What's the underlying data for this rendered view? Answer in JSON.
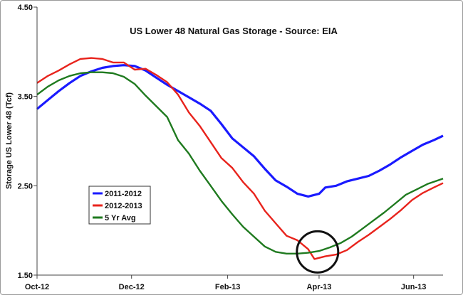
{
  "chart_data": {
    "type": "line",
    "title": "US Lower 48 Natural Gas Storage - Source: EIA",
    "xlabel": "",
    "ylabel": "Storage US Lower 48 (Tcf)",
    "xlim": [
      "2012-10-01",
      "2013-06-20"
    ],
    "ylim": [
      1.5,
      4.5
    ],
    "x_ticks": [
      {
        "label": "Oct-12",
        "x": "2012-10-01"
      },
      {
        "label": "Dec-12",
        "x": "2012-12-01"
      },
      {
        "label": "Feb-13",
        "x": "2013-02-01"
      },
      {
        "label": "Apr-13",
        "x": "2013-04-01"
      },
      {
        "label": "Jun-13",
        "x": "2013-06-01"
      }
    ],
    "y_ticks": [
      {
        "label": "1.50",
        "value": 1.5
      },
      {
        "label": "2.50",
        "value": 2.5
      },
      {
        "label": "3.50",
        "value": 3.5
      },
      {
        "label": "4.50",
        "value": 4.5
      }
    ],
    "grid": false,
    "legend": {
      "position": "left-center"
    },
    "annotation": {
      "type": "circle",
      "x": "2013-03-31",
      "y": 1.76
    },
    "colors": {
      "2011-2012": "#1a1aff",
      "2012-2013": "#e8231c",
      "5 Yr Avg": "#1f7a1f"
    },
    "series": [
      {
        "name": "2011-2012",
        "points": [
          [
            "2012-10-01",
            3.36
          ],
          [
            "2012-10-08",
            3.46
          ],
          [
            "2012-10-15",
            3.56
          ],
          [
            "2012-10-22",
            3.65
          ],
          [
            "2012-10-29",
            3.73
          ],
          [
            "2012-11-05",
            3.78
          ],
          [
            "2012-11-12",
            3.82
          ],
          [
            "2012-11-19",
            3.84
          ],
          [
            "2012-11-26",
            3.85
          ],
          [
            "2012-12-03",
            3.84
          ],
          [
            "2012-12-10",
            3.79
          ],
          [
            "2012-12-17",
            3.71
          ],
          [
            "2012-12-24",
            3.63
          ],
          [
            "2012-12-31",
            3.56
          ],
          [
            "2013-01-07",
            3.49
          ],
          [
            "2013-01-14",
            3.42
          ],
          [
            "2013-01-21",
            3.34
          ],
          [
            "2013-01-28",
            3.19
          ],
          [
            "2013-02-04",
            3.03
          ],
          [
            "2013-02-11",
            2.93
          ],
          [
            "2013-02-18",
            2.83
          ],
          [
            "2013-02-25",
            2.69
          ],
          [
            "2013-03-04",
            2.56
          ],
          [
            "2013-03-11",
            2.49
          ],
          [
            "2013-03-18",
            2.41
          ],
          [
            "2013-03-25",
            2.38
          ],
          [
            "2013-04-01",
            2.41
          ],
          [
            "2013-04-05",
            2.48
          ],
          [
            "2013-04-12",
            2.5
          ],
          [
            "2013-04-19",
            2.55
          ],
          [
            "2013-04-26",
            2.58
          ],
          [
            "2013-05-03",
            2.61
          ],
          [
            "2013-05-10",
            2.67
          ],
          [
            "2013-05-17",
            2.74
          ],
          [
            "2013-05-24",
            2.82
          ],
          [
            "2013-05-31",
            2.89
          ],
          [
            "2013-06-07",
            2.96
          ],
          [
            "2013-06-14",
            3.01
          ],
          [
            "2013-06-20",
            3.06
          ]
        ]
      },
      {
        "name": "2012-2013",
        "points": [
          [
            "2012-10-01",
            3.65
          ],
          [
            "2012-10-08",
            3.73
          ],
          [
            "2012-10-15",
            3.79
          ],
          [
            "2012-10-22",
            3.86
          ],
          [
            "2012-10-29",
            3.92
          ],
          [
            "2012-11-05",
            3.93
          ],
          [
            "2012-11-12",
            3.92
          ],
          [
            "2012-11-19",
            3.88
          ],
          [
            "2012-11-26",
            3.88
          ],
          [
            "2012-12-03",
            3.8
          ],
          [
            "2012-12-10",
            3.81
          ],
          [
            "2012-12-17",
            3.74
          ],
          [
            "2012-12-24",
            3.66
          ],
          [
            "2012-12-31",
            3.52
          ],
          [
            "2013-01-07",
            3.32
          ],
          [
            "2013-01-14",
            3.17
          ],
          [
            "2013-01-21",
            2.99
          ],
          [
            "2013-01-28",
            2.81
          ],
          [
            "2013-02-04",
            2.7
          ],
          [
            "2013-02-11",
            2.54
          ],
          [
            "2013-02-18",
            2.41
          ],
          [
            "2013-02-25",
            2.22
          ],
          [
            "2013-03-04",
            2.08
          ],
          [
            "2013-03-11",
            1.94
          ],
          [
            "2013-03-18",
            1.89
          ],
          [
            "2013-03-25",
            1.79
          ],
          [
            "2013-03-29",
            1.68
          ],
          [
            "2013-04-05",
            1.71
          ],
          [
            "2013-04-12",
            1.73
          ],
          [
            "2013-04-19",
            1.78
          ],
          [
            "2013-04-26",
            1.87
          ],
          [
            "2013-05-03",
            1.95
          ],
          [
            "2013-05-10",
            2.04
          ],
          [
            "2013-05-17",
            2.13
          ],
          [
            "2013-05-24",
            2.23
          ],
          [
            "2013-05-31",
            2.34
          ],
          [
            "2013-06-07",
            2.42
          ],
          [
            "2013-06-14",
            2.48
          ],
          [
            "2013-06-20",
            2.53
          ]
        ]
      },
      {
        "name": "5 Yr Avg",
        "points": [
          [
            "2012-10-01",
            3.52
          ],
          [
            "2012-10-08",
            3.61
          ],
          [
            "2012-10-15",
            3.68
          ],
          [
            "2012-10-22",
            3.73
          ],
          [
            "2012-10-29",
            3.76
          ],
          [
            "2012-11-05",
            3.77
          ],
          [
            "2012-11-12",
            3.77
          ],
          [
            "2012-11-19",
            3.76
          ],
          [
            "2012-11-26",
            3.72
          ],
          [
            "2012-12-03",
            3.64
          ],
          [
            "2012-12-10",
            3.51
          ],
          [
            "2012-12-17",
            3.39
          ],
          [
            "2012-12-24",
            3.27
          ],
          [
            "2012-12-31",
            3.01
          ],
          [
            "2013-01-07",
            2.86
          ],
          [
            "2013-01-14",
            2.67
          ],
          [
            "2013-01-21",
            2.5
          ],
          [
            "2013-01-28",
            2.33
          ],
          [
            "2013-02-04",
            2.18
          ],
          [
            "2013-02-11",
            2.04
          ],
          [
            "2013-02-18",
            1.93
          ],
          [
            "2013-02-25",
            1.82
          ],
          [
            "2013-03-04",
            1.76
          ],
          [
            "2013-03-11",
            1.74
          ],
          [
            "2013-03-18",
            1.74
          ],
          [
            "2013-03-25",
            1.75
          ],
          [
            "2013-04-01",
            1.77
          ],
          [
            "2013-04-08",
            1.81
          ],
          [
            "2013-04-15",
            1.86
          ],
          [
            "2013-04-22",
            1.93
          ],
          [
            "2013-04-29",
            2.02
          ],
          [
            "2013-05-06",
            2.11
          ],
          [
            "2013-05-13",
            2.2
          ],
          [
            "2013-05-20",
            2.3
          ],
          [
            "2013-05-27",
            2.4
          ],
          [
            "2013-06-03",
            2.46
          ],
          [
            "2013-06-10",
            2.52
          ],
          [
            "2013-06-20",
            2.58
          ]
        ]
      }
    ]
  }
}
